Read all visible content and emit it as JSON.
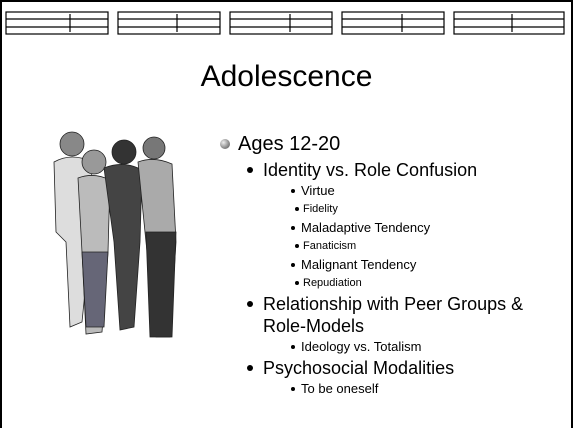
{
  "title": "Adolescence",
  "outline": [
    {
      "text": "Ages 12-20",
      "children": [
        {
          "text": "Identity vs. Role Confusion",
          "children": [
            {
              "text": "Virtue",
              "children": [
                {
                  "text": "Fidelity"
                }
              ]
            },
            {
              "text": "Maladaptive Tendency",
              "children": [
                {
                  "text": "Fanaticism"
                }
              ]
            },
            {
              "text": "Malignant Tendency",
              "children": [
                {
                  "text": "Repudiation"
                }
              ]
            }
          ]
        },
        {
          "text": "Relationship with Peer Groups & Role-Models",
          "children": [
            {
              "text": "Ideology vs. Totalism"
            }
          ]
        },
        {
          "text": "Psychosocial Modalities",
          "children": [
            {
              "text": "To be oneself"
            }
          ]
        }
      ]
    }
  ]
}
